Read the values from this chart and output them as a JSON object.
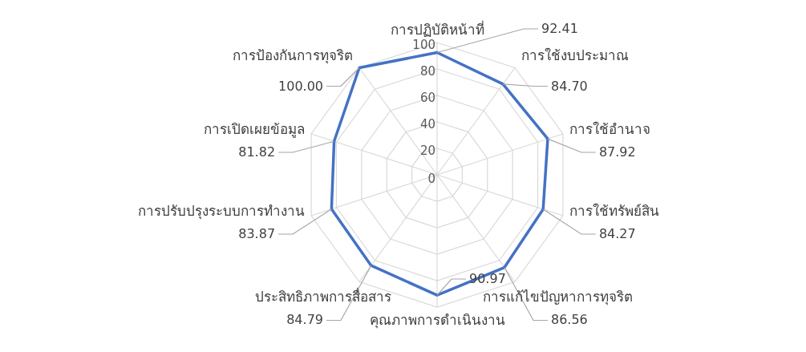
{
  "chart_data": {
    "type": "radar",
    "categories": [
      "การปฏิบัติหน้าที่",
      "การใช้งบประมาณ",
      "การใช้อำนาจ",
      "การใช้ทรัพย์สิน",
      "การแก้ไขปัญหาการทุจริต",
      "คุณภาพการดำเนินงาน",
      "ประสิทธิภาพการสื่อสาร",
      "การปรับปรุงระบบการทำงาน",
      "การเปิดเผยข้อมูล",
      "การป้องกันการทุจริต"
    ],
    "series": [
      {
        "color": "#4472c4",
        "values": [
          92.41,
          84.7,
          87.92,
          84.27,
          86.56,
          90.97,
          84.79,
          83.87,
          81.82,
          100.0
        ],
        "value_labels": [
          "92.41",
          "84.70",
          "87.92",
          "84.27",
          "86.56",
          "90.97",
          "84.79",
          "83.87",
          "81.82",
          "100.00"
        ]
      }
    ],
    "ylim": [
      0,
      100
    ],
    "yticks": [
      0,
      20,
      40,
      60,
      80,
      100
    ],
    "grid": true,
    "marker": "none",
    "line_style": "solid"
  }
}
